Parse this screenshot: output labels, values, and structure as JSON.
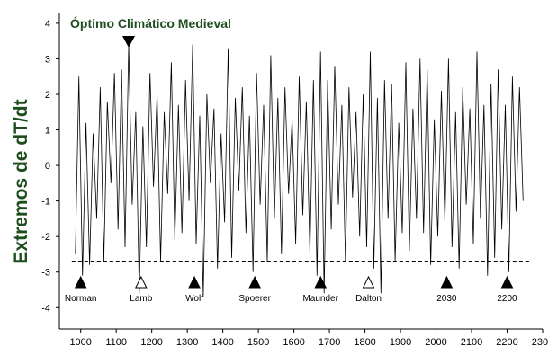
{
  "chart_data": {
    "type": "line",
    "title": "Óptimo Climático Medieval",
    "ylabel": "Extremos de dT/dt",
    "xlabel": "",
    "xlim": [
      940,
      2300
    ],
    "ylim": [
      -4.6,
      4.3
    ],
    "x_ticks": [
      "1000",
      "1100",
      "1200",
      "1300",
      "1400",
      "1500",
      "1600",
      "1700",
      "1800",
      "1900",
      "2000",
      "2100",
      "2200",
      "2300"
    ],
    "y_ticks": [
      "4",
      "3",
      "2",
      "1",
      "0",
      "-1",
      "-2",
      "-3",
      "-4"
    ],
    "threshold": -2.7,
    "title_marker_year": 1135,
    "series": [
      {
        "x": [
          985,
          995,
          1005,
          1015,
          1025,
          1035,
          1045,
          1055,
          1065,
          1075,
          1085,
          1095,
          1105,
          1115,
          1125,
          1135,
          1145,
          1155,
          1165,
          1175,
          1185,
          1195,
          1205,
          1215,
          1225,
          1235,
          1245,
          1255,
          1265,
          1275,
          1285,
          1295,
          1305,
          1315,
          1325,
          1335,
          1345,
          1355,
          1365,
          1375,
          1385,
          1395,
          1405,
          1415,
          1425,
          1435,
          1445,
          1455,
          1465,
          1475,
          1485,
          1495,
          1505,
          1515,
          1525,
          1535,
          1545,
          1555,
          1565,
          1575,
          1585,
          1595,
          1605,
          1615,
          1625,
          1635,
          1645,
          1655,
          1665,
          1675,
          1685,
          1695,
          1705,
          1715,
          1725,
          1735,
          1745,
          1755,
          1765,
          1775,
          1785,
          1795,
          1805,
          1815,
          1825,
          1835,
          1845,
          1855,
          1865,
          1875,
          1885,
          1895,
          1905,
          1915,
          1925,
          1935,
          1945,
          1955,
          1965,
          1975,
          1985,
          1995,
          2005,
          2015,
          2025,
          2035,
          2045,
          2055,
          2065,
          2075,
          2085,
          2095,
          2105,
          2115,
          2125,
          2135,
          2145,
          2155,
          2165,
          2175,
          2185,
          2195,
          2205,
          2215,
          2225,
          2235,
          2245
        ],
        "values": [
          -2.5,
          2.5,
          -3.1,
          1.2,
          -2.8,
          0.9,
          -1.5,
          2.2,
          -2.7,
          1.8,
          -0.5,
          2.6,
          -1.8,
          2.7,
          -2.3,
          3.4,
          -1.1,
          1.5,
          -3.6,
          1.1,
          -2.3,
          2.6,
          -0.6,
          2.0,
          -2.7,
          1.5,
          -0.8,
          2.9,
          -2.1,
          1.7,
          -1.9,
          2.4,
          -1.0,
          3.4,
          -2.2,
          1.4,
          -3.7,
          2.0,
          -0.5,
          1.6,
          -2.9,
          0.9,
          -1.6,
          3.3,
          -2.6,
          1.9,
          -0.7,
          2.2,
          -1.9,
          1.4,
          -3.0,
          2.6,
          -1.1,
          1.7,
          -2.7,
          3.1,
          -1.5,
          1.9,
          -2.5,
          2.2,
          -0.8,
          1.3,
          -2.2,
          2.5,
          -1.4,
          1.8,
          -2.5,
          2.4,
          -3.1,
          3.2,
          -3.6,
          2.4,
          -1.8,
          2.8,
          -1.1,
          1.7,
          -2.7,
          2.2,
          -0.9,
          1.5,
          -2.0,
          2.0,
          -2.3,
          3.2,
          -2.9,
          1.9,
          -3.6,
          2.4,
          -1.5,
          2.3,
          -2.7,
          1.2,
          -1.9,
          2.9,
          -2.4,
          1.6,
          -1.5,
          3.0,
          -1.9,
          2.7,
          -2.8,
          1.3,
          -2.0,
          2.1,
          -1.6,
          3.0,
          -2.3,
          1.5,
          -2.9,
          2.2,
          -1.1,
          1.6,
          -2.2,
          3.2,
          -1.5,
          1.7,
          -3.1,
          2.3,
          -2.6,
          2.7,
          -1.8,
          1.7,
          -3.0,
          2.5,
          -1.3,
          2.2,
          -1.0
        ]
      }
    ],
    "events": [
      {
        "label": "Norman",
        "x": 1000,
        "filled": true
      },
      {
        "label": "Lamb",
        "x": 1170,
        "filled": false
      },
      {
        "label": "Wolf",
        "x": 1320,
        "filled": true
      },
      {
        "label": "Spoerer",
        "x": 1490,
        "filled": true
      },
      {
        "label": "Maunder",
        "x": 1675,
        "filled": true
      },
      {
        "label": "Dalton",
        "x": 1810,
        "filled": false
      },
      {
        "label": "2030",
        "x": 2030,
        "filled": true
      },
      {
        "label": "2200",
        "x": 2200,
        "filled": true
      }
    ]
  }
}
